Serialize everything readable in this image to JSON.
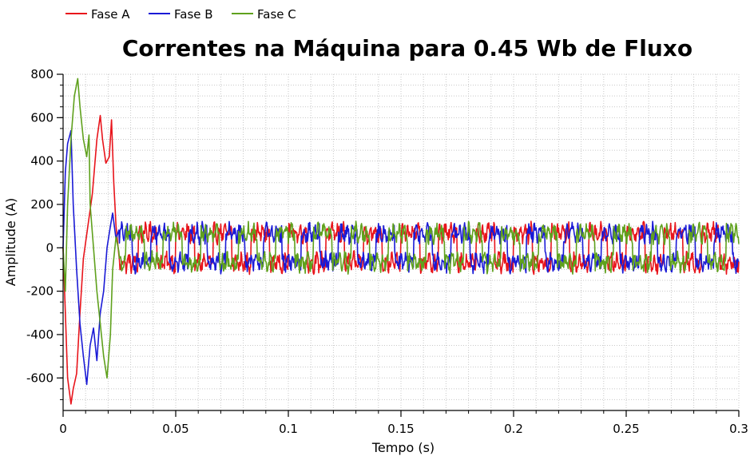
{
  "chart_data": {
    "type": "line",
    "title": "Correntes na Máquina para 0.45 Wb de Fluxo",
    "xlabel": "Tempo (s)",
    "ylabel": "Amplitude (A)",
    "xlim": [
      0,
      0.3
    ],
    "ylim": [
      -750,
      800
    ],
    "xticks": [
      0,
      0.05,
      0.1,
      0.15,
      0.2,
      0.25,
      0.3
    ],
    "xtick_labels": [
      "0",
      "0.05",
      "0.1",
      "0.15",
      "0.2",
      "0.25",
      "0.3"
    ],
    "yticks": [
      -600,
      -400,
      -200,
      0,
      200,
      400,
      600,
      800
    ],
    "ytick_labels": [
      "-600",
      "-400",
      "-200",
      "0",
      "200",
      "400",
      "600",
      "800"
    ],
    "grid": true,
    "legend_position": "top-left",
    "series": [
      {
        "name": "Fase A",
        "color": "#e8141b",
        "transient": [
          [
            0,
            0
          ],
          [
            0.001,
            -300
          ],
          [
            0.002,
            -600
          ],
          [
            0.0035,
            -720
          ],
          [
            0.0045,
            -650
          ],
          [
            0.006,
            -580
          ],
          [
            0.0075,
            -300
          ],
          [
            0.009,
            -50
          ],
          [
            0.011,
            100
          ],
          [
            0.013,
            250
          ],
          [
            0.015,
            500
          ],
          [
            0.0165,
            610
          ],
          [
            0.0175,
            500
          ],
          [
            0.019,
            390
          ],
          [
            0.0205,
            420
          ],
          [
            0.0215,
            590
          ],
          [
            0.0225,
            300
          ],
          [
            0.0235,
            100
          ],
          [
            0.025,
            -60
          ]
        ],
        "steady_amplitude": 80,
        "steady_noise": 30,
        "phase_deg": 0
      },
      {
        "name": "Fase B",
        "color": "#1a1ad6",
        "transient": [
          [
            0,
            0
          ],
          [
            0.001,
            350
          ],
          [
            0.002,
            480
          ],
          [
            0.0035,
            540
          ],
          [
            0.0045,
            200
          ],
          [
            0.006,
            -100
          ],
          [
            0.0075,
            -350
          ],
          [
            0.009,
            -500
          ],
          [
            0.0105,
            -630
          ],
          [
            0.012,
            -450
          ],
          [
            0.0135,
            -370
          ],
          [
            0.015,
            -520
          ],
          [
            0.0165,
            -300
          ],
          [
            0.018,
            -200
          ],
          [
            0.0195,
            0
          ],
          [
            0.021,
            100
          ],
          [
            0.022,
            160
          ],
          [
            0.0235,
            40
          ],
          [
            0.025,
            90
          ]
        ],
        "steady_amplitude": 80,
        "steady_noise": 30,
        "phase_deg": -120
      },
      {
        "name": "Fase C",
        "color": "#5fa11d",
        "transient": [
          [
            0,
            0
          ],
          [
            0.001,
            -200
          ],
          [
            0.002,
            200
          ],
          [
            0.0035,
            500
          ],
          [
            0.005,
            700
          ],
          [
            0.0065,
            780
          ],
          [
            0.0075,
            650
          ],
          [
            0.009,
            500
          ],
          [
            0.0105,
            420
          ],
          [
            0.0115,
            520
          ],
          [
            0.012,
            200
          ],
          [
            0.0135,
            0
          ],
          [
            0.015,
            -200
          ],
          [
            0.0165,
            -350
          ],
          [
            0.018,
            -500
          ],
          [
            0.0195,
            -600
          ],
          [
            0.021,
            -400
          ],
          [
            0.022,
            -100
          ],
          [
            0.0235,
            50
          ],
          [
            0.025,
            -30
          ]
        ],
        "steady_amplitude": 80,
        "steady_noise": 30,
        "phase_deg": 120
      }
    ],
    "steady_frequency_hz": 60
  }
}
